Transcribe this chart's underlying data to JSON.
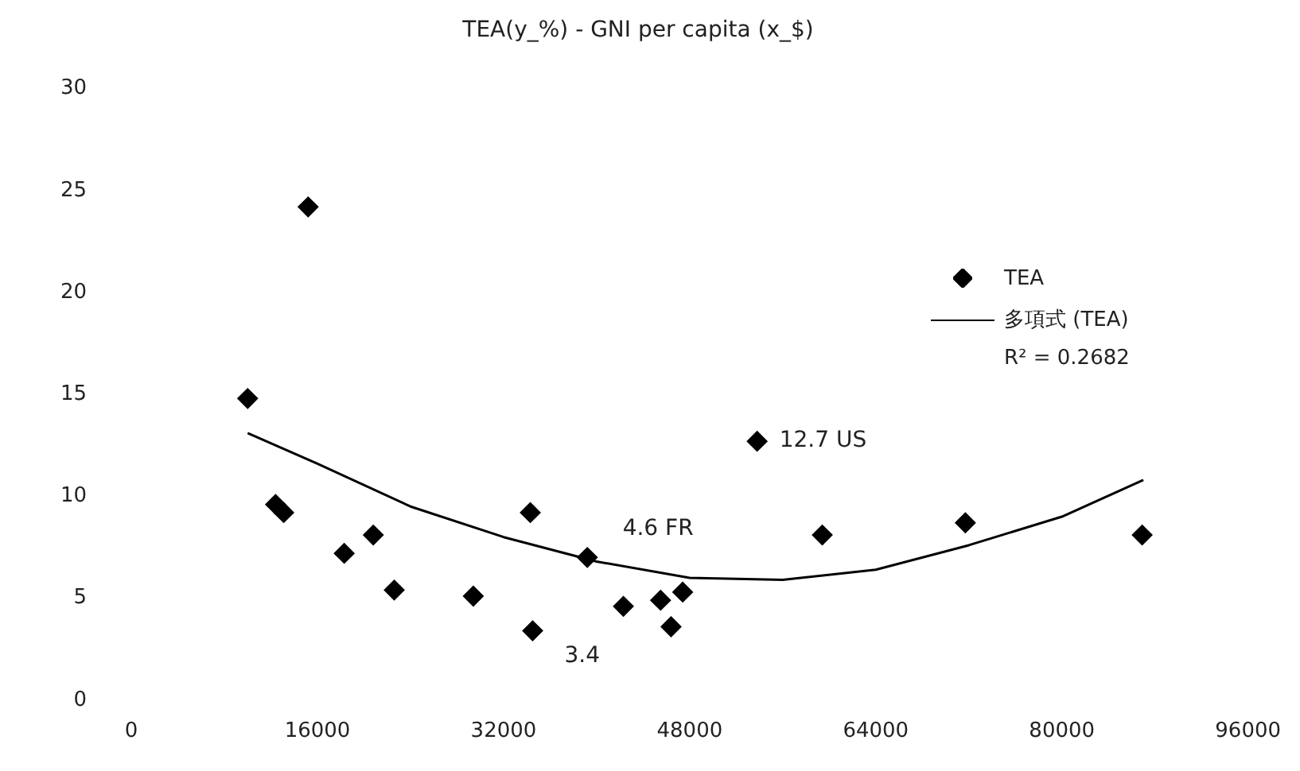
{
  "chart_data": {
    "type": "scatter",
    "title": "TEA(y_%) - GNI per capita (x_$)",
    "xlim": [
      0,
      96000
    ],
    "xticks": [
      0,
      16000,
      32000,
      48000,
      64000,
      80000,
      96000
    ],
    "ylim": [
      0,
      30
    ],
    "yticks": [
      0,
      5,
      10,
      15,
      20,
      25,
      30
    ],
    "grid": false,
    "legend": "right",
    "marker": "diamond",
    "series": [
      {
        "name": "TEA",
        "color": "#000000",
        "x": [
          10000,
          15200,
          12400,
          13100,
          18300,
          20800,
          22600,
          29400,
          34300,
          34500,
          39200,
          42300,
          45500,
          46400,
          47400,
          53800,
          59400,
          71700,
          86900
        ],
        "values": [
          14.8,
          24.2,
          9.6,
          9.2,
          7.2,
          8.1,
          5.4,
          5.1,
          9.2,
          3.4,
          7.0,
          4.6,
          4.9,
          3.6,
          5.3,
          12.7,
          8.1,
          8.7,
          8.1
        ]
      },
      {
        "name": "多項式 (TEA)",
        "type": "line",
        "color": "#000000",
        "marker": "none",
        "line_style": "solid",
        "x": [
          10000,
          16000,
          24000,
          32000,
          40000,
          48000,
          56000,
          64000,
          72000,
          80000,
          87000
        ],
        "values": [
          13.1,
          11.6,
          9.5,
          8.0,
          6.8,
          6.0,
          5.9,
          6.4,
          7.6,
          9.0,
          10.8
        ]
      }
    ],
    "annotations": [
      {
        "text": "12.7 US",
        "x": 53800,
        "y": 12.7
      },
      "4.6 FR",
      {
        "text": "3.4",
        "x": 34500,
        "y": 3.4
      },
      "R² = 0.2682"
    ]
  }
}
